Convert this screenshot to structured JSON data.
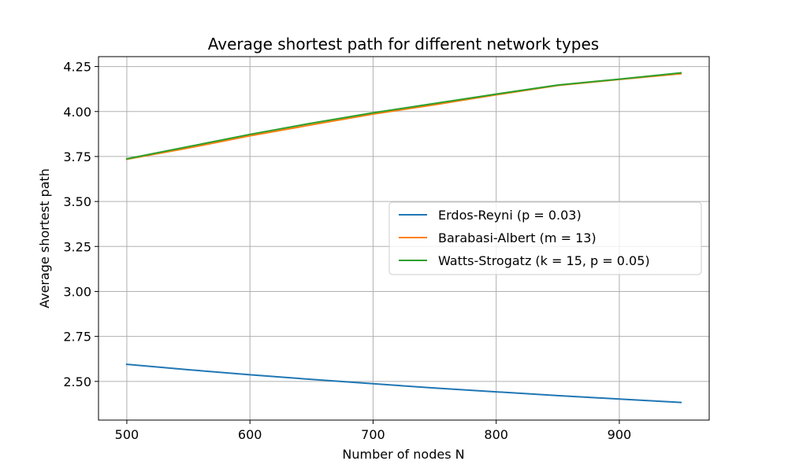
{
  "chart_data": {
    "type": "line",
    "title": "Average shortest path for different network types",
    "xlabel": "Number of nodes N",
    "ylabel": "Average shortest path",
    "xlim": [
      477,
      973
    ],
    "ylim": [
      2.285,
      4.305
    ],
    "xticks": [
      500,
      600,
      700,
      800,
      900
    ],
    "xtick_labels": [
      "500",
      "600",
      "700",
      "800",
      "900"
    ],
    "yticks": [
      2.5,
      2.75,
      3.0,
      3.25,
      3.5,
      3.75,
      4.0,
      4.25
    ],
    "ytick_labels": [
      "2.50",
      "2.75",
      "3.00",
      "3.25",
      "3.50",
      "3.75",
      "4.00",
      "4.25"
    ],
    "grid": true,
    "legend_position": "center-right",
    "x": [
      500,
      550,
      600,
      650,
      700,
      750,
      800,
      850,
      900,
      950
    ],
    "series": [
      {
        "name": "Erdos-Reyni (p = 0.03)",
        "color": "#1f77b4",
        "values": [
          2.595,
          2.565,
          2.537,
          2.511,
          2.487,
          2.463,
          2.442,
          2.421,
          2.402,
          2.383
        ]
      },
      {
        "name": "Barabasi-Albert (m = 13)",
        "color": "#ff7f0e",
        "values": [
          3.735,
          3.797,
          3.865,
          3.926,
          3.986,
          4.038,
          4.093,
          4.145,
          4.178,
          4.21
        ]
      },
      {
        "name": "Watts-Strogatz (k = 15, p = 0.05)",
        "color": "#2ca02c",
        "values": [
          3.737,
          3.805,
          3.873,
          3.935,
          3.993,
          4.045,
          4.097,
          4.147,
          4.18,
          4.215
        ]
      }
    ]
  }
}
